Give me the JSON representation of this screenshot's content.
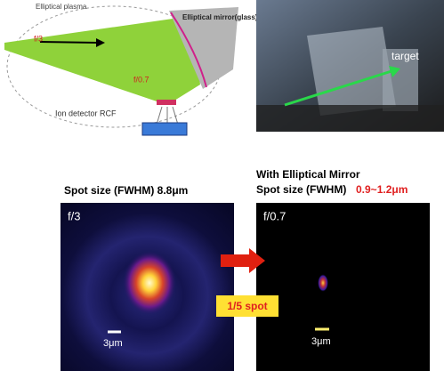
{
  "diagram": {
    "plasma": "Elliptical plasma",
    "mirror": "Elliptical mirror(glass)",
    "f_in": "f/3",
    "f_out": "f/0.7",
    "detector": "Ion detector RCF"
  },
  "photo": {
    "label": "target"
  },
  "comparison": {
    "left": {
      "title": "Spot size (FWHM) 8.8μm",
      "f": "f/3",
      "scale": "3μm"
    },
    "right": {
      "heading": "With Elliptical Mirror",
      "title": "Spot size (FWHM)",
      "value": "0.9~1.2μm",
      "f": "f/0.7",
      "scale": "3μm"
    },
    "badge": "1/5 spot"
  }
}
